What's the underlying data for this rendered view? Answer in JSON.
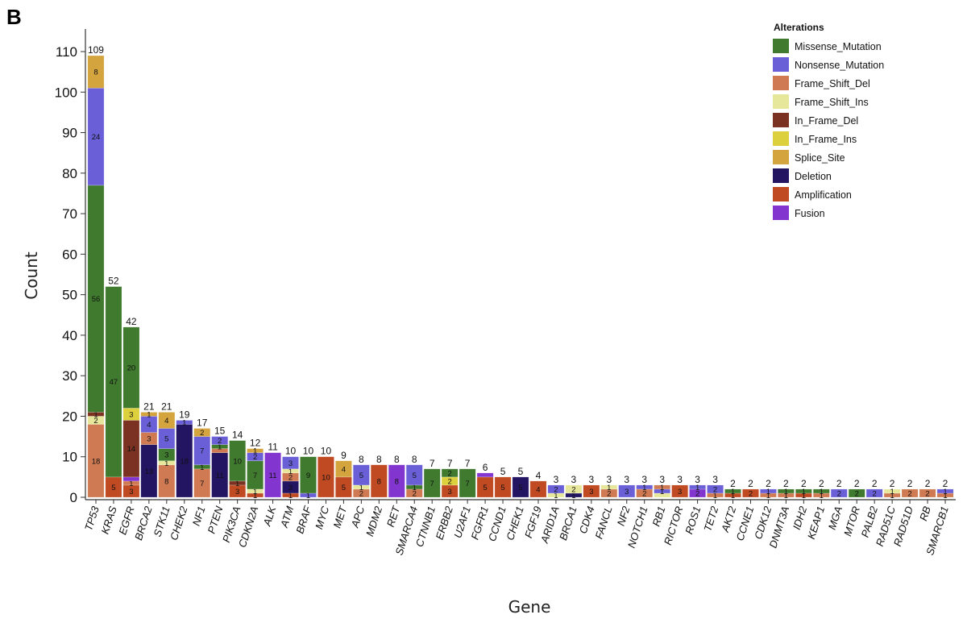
{
  "panel_label": "B",
  "chart_data": {
    "type": "bar",
    "stacked": true,
    "xlabel": "Gene",
    "ylabel": "Count",
    "ylim": [
      0,
      115
    ],
    "yticks": [
      0,
      10,
      20,
      30,
      40,
      50,
      60,
      70,
      80,
      90,
      100,
      110
    ],
    "legend_title": "Alterations",
    "legend_position": "top-right",
    "series": [
      {
        "name": "Missense_Mutation",
        "color": "#3f7a2e"
      },
      {
        "name": "Nonsense_Mutation",
        "color": "#6a5fd6"
      },
      {
        "name": "Frame_Shift_Del",
        "color": "#cf7a52"
      },
      {
        "name": "Frame_Shift_Ins",
        "color": "#e6e79a"
      },
      {
        "name": "In_Frame_Del",
        "color": "#7b3222"
      },
      {
        "name": "In_Frame_Ins",
        "color": "#dcd03c"
      },
      {
        "name": "Splice_Site",
        "color": "#d4a43e"
      },
      {
        "name": "Deletion",
        "color": "#241563"
      },
      {
        "name": "Amplification",
        "color": "#c04a22"
      },
      {
        "name": "Fusion",
        "color": "#8236cf"
      }
    ],
    "genes": [
      {
        "gene": "TP53",
        "total": "109",
        "segments": [
          [
            "Frame_Shift_Del",
            18,
            "18"
          ],
          [
            "Frame_Shift_Ins",
            2,
            "2"
          ],
          [
            "In_Frame_Del",
            1,
            "1"
          ],
          [
            "Missense_Mutation",
            56,
            "56"
          ],
          [
            "Nonsense_Mutation",
            24,
            "24"
          ],
          [
            "Splice_Site",
            8,
            "8"
          ]
        ]
      },
      {
        "gene": "KRAS",
        "total": "52",
        "segments": [
          [
            "Amplification",
            5,
            "5"
          ],
          [
            "Missense_Mutation",
            47,
            "47"
          ]
        ]
      },
      {
        "gene": "EGFR",
        "total": "42",
        "segments": [
          [
            "Amplification",
            3,
            "3"
          ],
          [
            "Frame_Shift_Del",
            1,
            "1"
          ],
          [
            "Fusion",
            1,
            ""
          ],
          [
            "In_Frame_Del",
            14,
            "14"
          ],
          [
            "In_Frame_Ins",
            3,
            "3"
          ],
          [
            "Missense_Mutation",
            20,
            "20"
          ]
        ]
      },
      {
        "gene": "BRCA2",
        "total": "21",
        "segments": [
          [
            "Deletion",
            13,
            "13"
          ],
          [
            "Frame_Shift_Del",
            3,
            "3"
          ],
          [
            "Nonsense_Mutation",
            4,
            "4"
          ],
          [
            "Splice_Site",
            1,
            "1"
          ]
        ]
      },
      {
        "gene": "STK11",
        "total": "21",
        "segments": [
          [
            "Frame_Shift_Del",
            8,
            "8"
          ],
          [
            "Frame_Shift_Ins",
            1,
            "1"
          ],
          [
            "Missense_Mutation",
            3,
            "3"
          ],
          [
            "Nonsense_Mutation",
            5,
            "5"
          ],
          [
            "Splice_Site",
            4,
            "4"
          ]
        ]
      },
      {
        "gene": "CHEK2",
        "total": "19",
        "segments": [
          [
            "Deletion",
            18,
            "18"
          ],
          [
            "Nonsense_Mutation",
            1,
            "1"
          ]
        ]
      },
      {
        "gene": "NF1",
        "total": "17",
        "segments": [
          [
            "Frame_Shift_Del",
            7,
            "7"
          ],
          [
            "Missense_Mutation",
            1,
            "1"
          ],
          [
            "Nonsense_Mutation",
            7,
            "7"
          ],
          [
            "Splice_Site",
            2,
            "2"
          ]
        ]
      },
      {
        "gene": "PTEN",
        "total": "15",
        "segments": [
          [
            "Deletion",
            11,
            "11"
          ],
          [
            "Frame_Shift_Del",
            1,
            ""
          ],
          [
            "Missense_Mutation",
            1,
            "1"
          ],
          [
            "Nonsense_Mutation",
            2,
            "2"
          ]
        ]
      },
      {
        "gene": "PIK3CA",
        "total": "14",
        "segments": [
          [
            "Amplification",
            3,
            "3"
          ],
          [
            "In_Frame_Del",
            1,
            "1"
          ],
          [
            "Missense_Mutation",
            10,
            "10"
          ]
        ]
      },
      {
        "gene": "CDKN2A",
        "total": "12",
        "segments": [
          [
            "Amplification",
            1,
            "1"
          ],
          [
            "Frame_Shift_Ins",
            1,
            "1"
          ],
          [
            "Missense_Mutation",
            7,
            "7"
          ],
          [
            "Nonsense_Mutation",
            2,
            "2"
          ],
          [
            "Splice_Site",
            1,
            "1"
          ]
        ]
      },
      {
        "gene": "ALK",
        "total": "11",
        "segments": [
          [
            "Fusion",
            11,
            "11"
          ]
        ]
      },
      {
        "gene": "ATM",
        "total": "10",
        "segments": [
          [
            "Amplification",
            1,
            "1"
          ],
          [
            "Deletion",
            3,
            "3"
          ],
          [
            "Frame_Shift_Del",
            2,
            "2"
          ],
          [
            "Frame_Shift_Ins",
            1,
            "1"
          ],
          [
            "Nonsense_Mutation",
            3,
            "3"
          ]
        ]
      },
      {
        "gene": "BRAF",
        "total": "10",
        "segments": [
          [
            "Nonsense_Mutation",
            1,
            "1"
          ],
          [
            "Missense_Mutation",
            9,
            "9"
          ]
        ]
      },
      {
        "gene": "MYC",
        "total": "10",
        "segments": [
          [
            "Amplification",
            10,
            "10"
          ]
        ]
      },
      {
        "gene": "MET",
        "total": "9",
        "segments": [
          [
            "Amplification",
            5,
            "5"
          ],
          [
            "Splice_Site",
            4,
            "4"
          ]
        ]
      },
      {
        "gene": "APC",
        "total": "8",
        "segments": [
          [
            "Frame_Shift_Del",
            2,
            "2"
          ],
          [
            "Frame_Shift_Ins",
            1,
            "1"
          ],
          [
            "Nonsense_Mutation",
            5,
            "5"
          ]
        ]
      },
      {
        "gene": "MDM2",
        "total": "8",
        "segments": [
          [
            "Amplification",
            8,
            "8"
          ]
        ]
      },
      {
        "gene": "RET",
        "total": "8",
        "segments": [
          [
            "Fusion",
            8,
            "8"
          ]
        ]
      },
      {
        "gene": "SMARCA4",
        "total": "8",
        "segments": [
          [
            "Frame_Shift_Del",
            2,
            "2"
          ],
          [
            "Missense_Mutation",
            1,
            "1"
          ],
          [
            "Nonsense_Mutation",
            5,
            "5"
          ]
        ]
      },
      {
        "gene": "CTNNB1",
        "total": "7",
        "segments": [
          [
            "Missense_Mutation",
            7,
            "7"
          ]
        ]
      },
      {
        "gene": "ERBB2",
        "total": "7",
        "segments": [
          [
            "Amplification",
            3,
            "3"
          ],
          [
            "In_Frame_Ins",
            2,
            "2"
          ],
          [
            "Missense_Mutation",
            2,
            "2"
          ]
        ]
      },
      {
        "gene": "U2AF1",
        "total": "7",
        "segments": [
          [
            "Missense_Mutation",
            7,
            "7"
          ]
        ]
      },
      {
        "gene": "FGFR1",
        "total": "6",
        "segments": [
          [
            "Amplification",
            5,
            "5"
          ],
          [
            "Fusion",
            1,
            ""
          ]
        ]
      },
      {
        "gene": "CCND1",
        "total": "5",
        "segments": [
          [
            "Amplification",
            5,
            "5"
          ]
        ]
      },
      {
        "gene": "CHEK1",
        "total": "5",
        "segments": [
          [
            "Deletion",
            5,
            "5"
          ]
        ]
      },
      {
        "gene": "FGF19",
        "total": "4",
        "segments": [
          [
            "Amplification",
            4,
            "4"
          ]
        ]
      },
      {
        "gene": "ARID1A",
        "total": "3",
        "segments": [
          [
            "Frame_Shift_Ins",
            1,
            "1"
          ],
          [
            "Nonsense_Mutation",
            2,
            "2"
          ]
        ]
      },
      {
        "gene": "BRCA1",
        "total": "3",
        "segments": [
          [
            "Deletion",
            1,
            "1"
          ],
          [
            "Frame_Shift_Ins",
            2,
            "2"
          ]
        ]
      },
      {
        "gene": "CDK4",
        "total": "3",
        "segments": [
          [
            "Amplification",
            3,
            "3"
          ]
        ]
      },
      {
        "gene": "FANCL",
        "total": "3",
        "segments": [
          [
            "Frame_Shift_Del",
            2,
            "2"
          ],
          [
            "Frame_Shift_Ins",
            1,
            "1"
          ]
        ]
      },
      {
        "gene": "NF2",
        "total": "3",
        "segments": [
          [
            "Nonsense_Mutation",
            3,
            "3"
          ]
        ]
      },
      {
        "gene": "NOTCH1",
        "total": "3",
        "segments": [
          [
            "Frame_Shift_Del",
            2,
            "2"
          ],
          [
            "Nonsense_Mutation",
            1,
            "1"
          ]
        ]
      },
      {
        "gene": "RB1",
        "total": "3",
        "segments": [
          [
            "Frame_Shift_Ins",
            1,
            ""
          ],
          [
            "Nonsense_Mutation",
            1,
            "1"
          ],
          [
            "Frame_Shift_Del",
            1,
            "1"
          ]
        ]
      },
      {
        "gene": "RICTOR",
        "total": "3",
        "segments": [
          [
            "Amplification",
            3,
            "3"
          ]
        ]
      },
      {
        "gene": "ROS1",
        "total": "3",
        "segments": [
          [
            "Fusion",
            2,
            "2"
          ],
          [
            "Nonsense_Mutation",
            1,
            "1"
          ]
        ]
      },
      {
        "gene": "TET2",
        "total": "3",
        "segments": [
          [
            "Frame_Shift_Del",
            1,
            "1"
          ],
          [
            "Nonsense_Mutation",
            2,
            "2"
          ]
        ]
      },
      {
        "gene": "AKT2",
        "total": "2",
        "segments": [
          [
            "Amplification",
            1,
            "1"
          ],
          [
            "Missense_Mutation",
            1,
            "1"
          ]
        ]
      },
      {
        "gene": "CCNE1",
        "total": "2",
        "segments": [
          [
            "Amplification",
            2,
            "2"
          ]
        ]
      },
      {
        "gene": "CDK12",
        "total": "2",
        "segments": [
          [
            "Frame_Shift_Del",
            1,
            "1"
          ],
          [
            "Nonsense_Mutation",
            1,
            "1"
          ]
        ]
      },
      {
        "gene": "DNMT3A",
        "total": "2",
        "segments": [
          [
            "Frame_Shift_Del",
            1,
            "1"
          ],
          [
            "Missense_Mutation",
            1,
            "1"
          ]
        ]
      },
      {
        "gene": "IDH2",
        "total": "2",
        "segments": [
          [
            "Amplification",
            1,
            "1"
          ],
          [
            "Missense_Mutation",
            1,
            "1"
          ]
        ]
      },
      {
        "gene": "KEAP1",
        "total": "2",
        "segments": [
          [
            "Frame_Shift_Del",
            1,
            "1"
          ],
          [
            "Missense_Mutation",
            1,
            "1"
          ]
        ]
      },
      {
        "gene": "MGA",
        "total": "2",
        "segments": [
          [
            "Nonsense_Mutation",
            2,
            "2"
          ]
        ]
      },
      {
        "gene": "MTOR",
        "total": "2",
        "segments": [
          [
            "Missense_Mutation",
            2,
            "2"
          ]
        ]
      },
      {
        "gene": "PALB2",
        "total": "2",
        "segments": [
          [
            "Nonsense_Mutation",
            2,
            "2"
          ]
        ]
      },
      {
        "gene": "RAD51C",
        "total": "2",
        "segments": [
          [
            "Frame_Shift_Del",
            1,
            "1"
          ],
          [
            "Frame_Shift_Ins",
            1,
            "1"
          ]
        ]
      },
      {
        "gene": "RAD51D",
        "total": "2",
        "segments": [
          [
            "Frame_Shift_Del",
            2,
            "2"
          ]
        ]
      },
      {
        "gene": "RB",
        "total": "2",
        "segments": [
          [
            "Frame_Shift_Del",
            2,
            "2"
          ]
        ]
      },
      {
        "gene": "SMARCB1",
        "total": "2",
        "segments": [
          [
            "Frame_Shift_Del",
            1,
            "1"
          ],
          [
            "Nonsense_Mutation",
            1,
            "1"
          ]
        ]
      }
    ]
  }
}
